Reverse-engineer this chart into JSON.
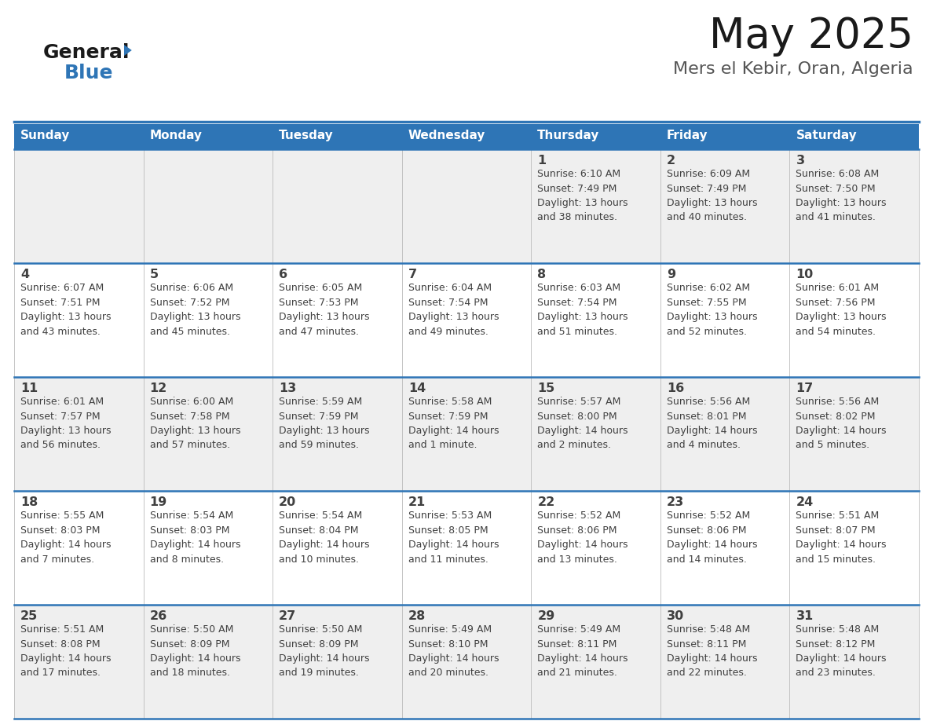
{
  "title": "May 2025",
  "subtitle": "Mers el Kebir, Oran, Algeria",
  "days_of_week": [
    "Sunday",
    "Monday",
    "Tuesday",
    "Wednesday",
    "Thursday",
    "Friday",
    "Saturday"
  ],
  "header_bg": "#2E75B6",
  "header_text": "#FFFFFF",
  "cell_bg_odd": "#EFEFEF",
  "cell_bg_even": "#FFFFFF",
  "row_line_color": "#2E75B6",
  "text_color": "#404040",
  "calendar_data": [
    [
      null,
      null,
      null,
      null,
      {
        "day": 1,
        "sunrise": "6:10 AM",
        "sunset": "7:49 PM",
        "daylight": "13 hours",
        "daylight2": "and 38 minutes."
      },
      {
        "day": 2,
        "sunrise": "6:09 AM",
        "sunset": "7:49 PM",
        "daylight": "13 hours",
        "daylight2": "and 40 minutes."
      },
      {
        "day": 3,
        "sunrise": "6:08 AM",
        "sunset": "7:50 PM",
        "daylight": "13 hours",
        "daylight2": "and 41 minutes."
      }
    ],
    [
      {
        "day": 4,
        "sunrise": "6:07 AM",
        "sunset": "7:51 PM",
        "daylight": "13 hours",
        "daylight2": "and 43 minutes."
      },
      {
        "day": 5,
        "sunrise": "6:06 AM",
        "sunset": "7:52 PM",
        "daylight": "13 hours",
        "daylight2": "and 45 minutes."
      },
      {
        "day": 6,
        "sunrise": "6:05 AM",
        "sunset": "7:53 PM",
        "daylight": "13 hours",
        "daylight2": "and 47 minutes."
      },
      {
        "day": 7,
        "sunrise": "6:04 AM",
        "sunset": "7:54 PM",
        "daylight": "13 hours",
        "daylight2": "and 49 minutes."
      },
      {
        "day": 8,
        "sunrise": "6:03 AM",
        "sunset": "7:54 PM",
        "daylight": "13 hours",
        "daylight2": "and 51 minutes."
      },
      {
        "day": 9,
        "sunrise": "6:02 AM",
        "sunset": "7:55 PM",
        "daylight": "13 hours",
        "daylight2": "and 52 minutes."
      },
      {
        "day": 10,
        "sunrise": "6:01 AM",
        "sunset": "7:56 PM",
        "daylight": "13 hours",
        "daylight2": "and 54 minutes."
      }
    ],
    [
      {
        "day": 11,
        "sunrise": "6:01 AM",
        "sunset": "7:57 PM",
        "daylight": "13 hours",
        "daylight2": "and 56 minutes."
      },
      {
        "day": 12,
        "sunrise": "6:00 AM",
        "sunset": "7:58 PM",
        "daylight": "13 hours",
        "daylight2": "and 57 minutes."
      },
      {
        "day": 13,
        "sunrise": "5:59 AM",
        "sunset": "7:59 PM",
        "daylight": "13 hours",
        "daylight2": "and 59 minutes."
      },
      {
        "day": 14,
        "sunrise": "5:58 AM",
        "sunset": "7:59 PM",
        "daylight": "14 hours",
        "daylight2": "and 1 minute."
      },
      {
        "day": 15,
        "sunrise": "5:57 AM",
        "sunset": "8:00 PM",
        "daylight": "14 hours",
        "daylight2": "and 2 minutes."
      },
      {
        "day": 16,
        "sunrise": "5:56 AM",
        "sunset": "8:01 PM",
        "daylight": "14 hours",
        "daylight2": "and 4 minutes."
      },
      {
        "day": 17,
        "sunrise": "5:56 AM",
        "sunset": "8:02 PM",
        "daylight": "14 hours",
        "daylight2": "and 5 minutes."
      }
    ],
    [
      {
        "day": 18,
        "sunrise": "5:55 AM",
        "sunset": "8:03 PM",
        "daylight": "14 hours",
        "daylight2": "and 7 minutes."
      },
      {
        "day": 19,
        "sunrise": "5:54 AM",
        "sunset": "8:03 PM",
        "daylight": "14 hours",
        "daylight2": "and 8 minutes."
      },
      {
        "day": 20,
        "sunrise": "5:54 AM",
        "sunset": "8:04 PM",
        "daylight": "14 hours",
        "daylight2": "and 10 minutes."
      },
      {
        "day": 21,
        "sunrise": "5:53 AM",
        "sunset": "8:05 PM",
        "daylight": "14 hours",
        "daylight2": "and 11 minutes."
      },
      {
        "day": 22,
        "sunrise": "5:52 AM",
        "sunset": "8:06 PM",
        "daylight": "14 hours",
        "daylight2": "and 13 minutes."
      },
      {
        "day": 23,
        "sunrise": "5:52 AM",
        "sunset": "8:06 PM",
        "daylight": "14 hours",
        "daylight2": "and 14 minutes."
      },
      {
        "day": 24,
        "sunrise": "5:51 AM",
        "sunset": "8:07 PM",
        "daylight": "14 hours",
        "daylight2": "and 15 minutes."
      }
    ],
    [
      {
        "day": 25,
        "sunrise": "5:51 AM",
        "sunset": "8:08 PM",
        "daylight": "14 hours",
        "daylight2": "and 17 minutes."
      },
      {
        "day": 26,
        "sunrise": "5:50 AM",
        "sunset": "8:09 PM",
        "daylight": "14 hours",
        "daylight2": "and 18 minutes."
      },
      {
        "day": 27,
        "sunrise": "5:50 AM",
        "sunset": "8:09 PM",
        "daylight": "14 hours",
        "daylight2": "and 19 minutes."
      },
      {
        "day": 28,
        "sunrise": "5:49 AM",
        "sunset": "8:10 PM",
        "daylight": "14 hours",
        "daylight2": "and 20 minutes."
      },
      {
        "day": 29,
        "sunrise": "5:49 AM",
        "sunset": "8:11 PM",
        "daylight": "14 hours",
        "daylight2": "and 21 minutes."
      },
      {
        "day": 30,
        "sunrise": "5:48 AM",
        "sunset": "8:11 PM",
        "daylight": "14 hours",
        "daylight2": "and 22 minutes."
      },
      {
        "day": 31,
        "sunrise": "5:48 AM",
        "sunset": "8:12 PM",
        "daylight": "14 hours",
        "daylight2": "and 23 minutes."
      }
    ]
  ]
}
